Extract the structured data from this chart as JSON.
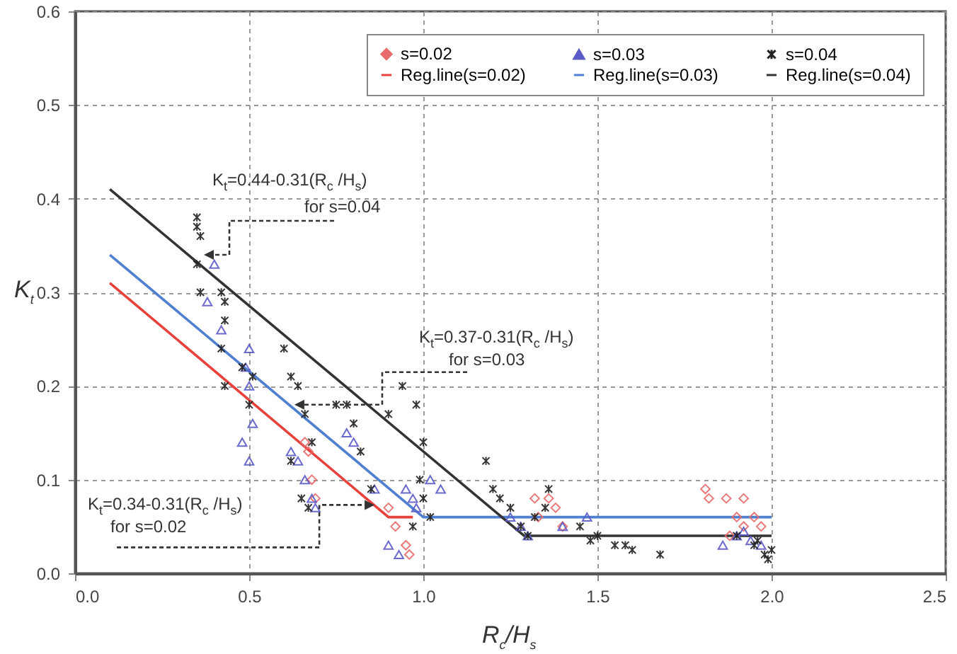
{
  "chart_data": {
    "type": "scatter",
    "xlabel": "R$_{c}$/H$_{s}$",
    "ylabel": "K$_{t}$",
    "xlim": [
      0,
      2.5
    ],
    "ylim": [
      0,
      0.6
    ],
    "xticks": [
      {
        "value": 0,
        "label": "0.0"
      },
      {
        "value": 0.5,
        "label": "0.5"
      },
      {
        "value": 1,
        "label": "1.0"
      },
      {
        "value": 1.5,
        "label": "1.5"
      },
      {
        "value": 2,
        "label": "2.0"
      },
      {
        "value": 2.5,
        "label": "2.5"
      }
    ],
    "yticks": [
      {
        "value": 0,
        "label": "0.0"
      },
      {
        "value": 0.1,
        "label": "0.1"
      },
      {
        "value": 0.2,
        "label": "0.2"
      },
      {
        "value": 0.3,
        "label": "0.3"
      },
      {
        "value": 0.4,
        "label": "0.4"
      },
      {
        "value": 0.5,
        "label": "0.5"
      },
      {
        "value": 0.6,
        "label": "0.6"
      }
    ],
    "grid": true,
    "legend": "top right",
    "annotations": [
      "K$_{t}$=0.44-0.31(R$_{c}$ /H$_{s}$)",
      {
        "text": "for s=0.04",
        "x": 0.37,
        "y": 0.34
      },
      "K$_{t}$=0.37-0.31(R$_{c}$ /H$_{s}$)",
      {
        "text": "for s=0.03",
        "x": 0.63,
        "y": 0.18
      },
      "K$_{t}$=0.34-0.31(R$_{c}$ /H$_{s}$)",
      {
        "text": "for s=0.02",
        "x": 0.86,
        "y": 0.073
      }
    ],
    "series": [
      {
        "name": "s=0.02",
        "marker": "diamond",
        "color": "#e86a6a",
        "x": [
          0.66,
          0.67,
          0.68,
          0.69,
          0.9,
          0.92,
          0.95,
          0.96,
          1.32,
          1.33,
          1.36,
          1.38,
          1.4,
          1.81,
          1.82,
          1.87,
          1.92,
          1.9,
          1.92,
          1.95,
          1.97,
          1.88
        ],
        "values": [
          0.14,
          0.13,
          0.1,
          0.08,
          0.07,
          0.05,
          0.03,
          0.02,
          0.08,
          0.06,
          0.08,
          0.07,
          0.05,
          0.09,
          0.08,
          0.08,
          0.08,
          0.06,
          0.05,
          0.06,
          0.05,
          0.04
        ]
      },
      {
        "name": "s=0.03",
        "marker": "triangle",
        "color": "#5a5ac8",
        "x": [
          0.4,
          0.38,
          0.42,
          0.5,
          0.49,
          0.5,
          0.51,
          0.48,
          0.5,
          0.62,
          0.64,
          0.66,
          0.68,
          0.69,
          0.78,
          0.8,
          0.86,
          0.9,
          0.93,
          0.95,
          0.97,
          0.98,
          1.02,
          1.05,
          1.25,
          1.28,
          1.3,
          1.4,
          1.47,
          1.86,
          1.9,
          1.92,
          1.94,
          1.97
        ],
        "values": [
          0.33,
          0.29,
          0.26,
          0.24,
          0.22,
          0.2,
          0.16,
          0.14,
          0.12,
          0.13,
          0.12,
          0.1,
          0.08,
          0.07,
          0.15,
          0.14,
          0.09,
          0.03,
          0.02,
          0.09,
          0.08,
          0.07,
          0.1,
          0.09,
          0.06,
          0.05,
          0.04,
          0.05,
          0.06,
          0.03,
          0.04,
          0.045,
          0.035,
          0.03
        ]
      },
      {
        "name": "s=0.04",
        "marker": "cross",
        "color": "#222222",
        "x": [
          0.35,
          0.35,
          0.36,
          0.35,
          0.36,
          0.42,
          0.43,
          0.43,
          0.42,
          0.43,
          0.48,
          0.5,
          0.51,
          0.6,
          0.62,
          0.64,
          0.66,
          0.68,
          0.62,
          0.65,
          0.67,
          0.75,
          0.78,
          0.8,
          0.82,
          0.85,
          0.9,
          0.94,
          0.98,
          1.0,
          0.99,
          1.0,
          0.97,
          1.02,
          1.18,
          1.2,
          1.22,
          1.25,
          1.28,
          1.3,
          1.32,
          1.35,
          1.36,
          1.45,
          1.48,
          1.5,
          1.55,
          1.58,
          1.6,
          1.68,
          1.9,
          1.95,
          1.98,
          2.0,
          1.96,
          1.99
        ],
        "values": [
          0.38,
          0.37,
          0.36,
          0.33,
          0.3,
          0.3,
          0.29,
          0.27,
          0.24,
          0.2,
          0.22,
          0.18,
          0.21,
          0.24,
          0.21,
          0.2,
          0.17,
          0.14,
          0.12,
          0.08,
          0.07,
          0.18,
          0.18,
          0.16,
          0.13,
          0.09,
          0.17,
          0.2,
          0.18,
          0.14,
          0.1,
          0.08,
          0.05,
          0.06,
          0.12,
          0.09,
          0.08,
          0.07,
          0.05,
          0.04,
          0.06,
          0.07,
          0.09,
          0.05,
          0.035,
          0.04,
          0.03,
          0.03,
          0.025,
          0.02,
          0.04,
          0.03,
          0.02,
          0.025,
          0.035,
          0.015
        ]
      },
      {
        "name": "Reg.line(s=0.02)",
        "type": "line",
        "color": "#e8413c",
        "x": [
          0.1,
          0.9,
          0.97
        ],
        "values": [
          0.31,
          0.06,
          0.06
        ]
      },
      {
        "name": "Reg.line(s=0.03)",
        "type": "line",
        "color": "#4f7fd0",
        "x": [
          0.1,
          1.0,
          2.0
        ],
        "values": [
          0.34,
          0.06,
          0.06
        ]
      },
      {
        "name": "Reg.line(s=0.04)",
        "type": "line",
        "color": "#333333",
        "x": [
          0.1,
          1.29,
          2.0
        ],
        "values": [
          0.41,
          0.04,
          0.04
        ]
      }
    ]
  }
}
